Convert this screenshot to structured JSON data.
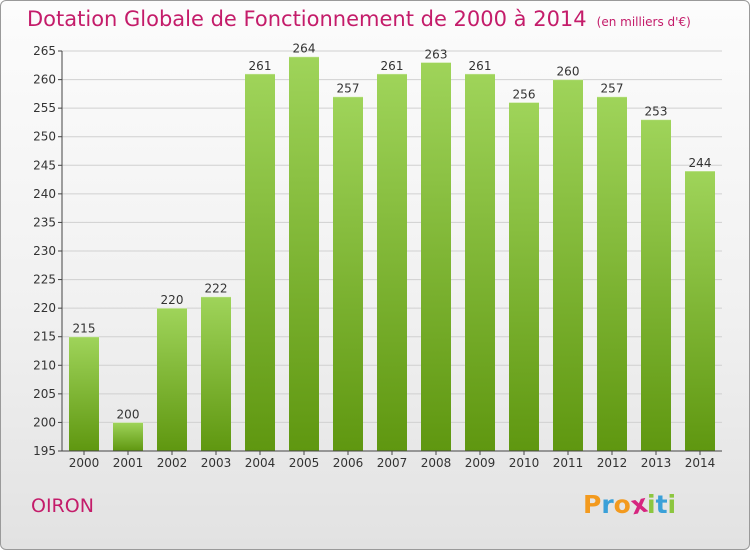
{
  "title": "Dotation Globale de Fonctionnement de 2000 à 2014",
  "unit": "(en milliers d'€)",
  "commune": "OIRON",
  "logo": {
    "letters": [
      "P",
      "r",
      "o",
      "x",
      "i",
      "t",
      "i"
    ],
    "colors": [
      "#f39a1e",
      "#3aa0d8",
      "#f39a1e",
      "#d6257f",
      "#8cc63f",
      "#3aa0d8",
      "#8cc63f"
    ]
  },
  "colors": {
    "title": "#c41c6a",
    "bar_light": "#9fd45a",
    "bar_dark": "#5f9710",
    "grid": "#d0d0d0",
    "axis": "#444444"
  },
  "chart_data": {
    "type": "bar",
    "categories": [
      "2000",
      "2001",
      "2002",
      "2003",
      "2004",
      "2005",
      "2006",
      "2007",
      "2008",
      "2009",
      "2010",
      "2011",
      "2012",
      "2013",
      "2014"
    ],
    "values": [
      215,
      200,
      220,
      222,
      261,
      264,
      257,
      261,
      263,
      261,
      256,
      260,
      257,
      253,
      244
    ],
    "ylim": [
      195,
      265
    ],
    "yticks": [
      195,
      200,
      205,
      210,
      215,
      220,
      225,
      230,
      235,
      240,
      245,
      250,
      255,
      260,
      265
    ],
    "grid": true,
    "data_labels": true
  }
}
